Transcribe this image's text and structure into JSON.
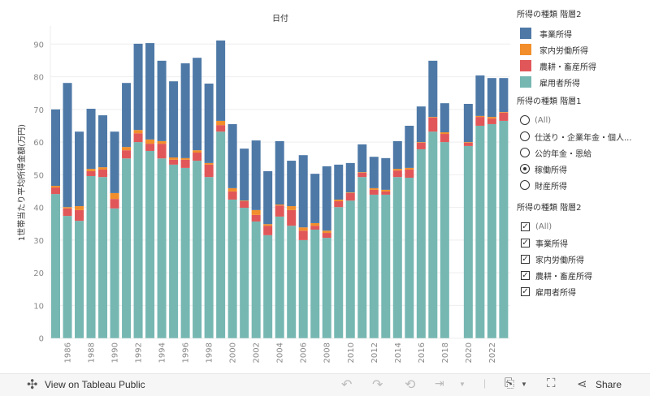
{
  "chart_data": {
    "type": "bar",
    "stacked": true,
    "title": "日付",
    "ylabel": "1世帯当たり平均所得金額(万円)",
    "xlabel": "",
    "ylim": [
      0,
      95
    ],
    "yticks": [
      0,
      10,
      20,
      30,
      40,
      50,
      60,
      70,
      80,
      90
    ],
    "grid": true,
    "categories": [
      1985,
      1986,
      1987,
      1988,
      1989,
      1990,
      1991,
      1992,
      1993,
      1994,
      1995,
      1996,
      1997,
      1998,
      1999,
      2000,
      2001,
      2002,
      2003,
      2004,
      2005,
      2006,
      2007,
      2008,
      2009,
      2010,
      2011,
      2012,
      2013,
      2014,
      2015,
      2016,
      2017,
      2018,
      2019,
      2020,
      2021,
      2022,
      2023
    ],
    "xtick_labels": [
      "1986",
      "1988",
      "1990",
      "1992",
      "1994",
      "1996",
      "1998",
      "2000",
      "2002",
      "2004",
      "2006",
      "2008",
      "2010",
      "2012",
      "2014",
      "2016",
      "2018",
      "2020",
      "2022"
    ],
    "series": [
      {
        "name": "雇用者所得",
        "color": "#76b7b2",
        "values": [
          44.1,
          37.4,
          35.9,
          49.6,
          49.3,
          39.7,
          55.0,
          60.0,
          57.3,
          55.0,
          53.1,
          52.1,
          54.3,
          49.3,
          63.2,
          42.4,
          39.9,
          35.7,
          31.5,
          37.2,
          34.4,
          30.0,
          33.2,
          30.7,
          40.1,
          42.1,
          49.3,
          43.9,
          43.9,
          49.3,
          49.1,
          57.8,
          63.2,
          60.0,
          null,
          58.8,
          65.0,
          65.5,
          66.5
        ]
      },
      {
        "name": "農耕・畜産所得",
        "color": "#e15759",
        "values": [
          2.0,
          2.3,
          3.3,
          1.5,
          2.3,
          2.9,
          2.5,
          2.7,
          2.2,
          4.5,
          1.5,
          2.5,
          2.5,
          3.8,
          2.0,
          2.5,
          2.0,
          2.0,
          2.9,
          3.4,
          4.8,
          2.9,
          1.2,
          1.5,
          1.8,
          2.3,
          1.3,
          1.5,
          1.0,
          2.0,
          2.5,
          2.0,
          4.3,
          2.5,
          null,
          1.0,
          2.7,
          1.7,
          2.5
        ]
      },
      {
        "name": "家内労働所得",
        "color": "#f28e2b",
        "values": [
          0.5,
          0.4,
          1.2,
          0.7,
          0.7,
          1.8,
          1.0,
          1.0,
          1.3,
          0.8,
          0.7,
          0.5,
          0.7,
          0.5,
          1.3,
          1.0,
          0.2,
          1.5,
          0.5,
          0.3,
          1.2,
          1.0,
          0.8,
          0.7,
          0.5,
          0.2,
          0.2,
          0.5,
          0.5,
          0.5,
          0.5,
          0.2,
          0.2,
          0.5,
          null,
          0.2,
          0.3,
          0.5,
          0.2
        ]
      },
      {
        "name": "事業所得",
        "color": "#4e79a7",
        "values": [
          23.4,
          38.0,
          22.8,
          18.4,
          15.9,
          18.8,
          19.6,
          26.4,
          29.5,
          24.6,
          23.3,
          29.0,
          28.3,
          24.3,
          24.6,
          19.6,
          15.9,
          21.3,
          16.2,
          19.4,
          13.9,
          22.1,
          15.1,
          19.7,
          10.7,
          9.0,
          8.5,
          9.6,
          9.7,
          8.5,
          12.9,
          10.9,
          17.2,
          8.9,
          null,
          11.7,
          12.4,
          11.9,
          10.4
        ]
      }
    ]
  },
  "legend": {
    "color_title": "所得の種類 階層2",
    "color_items": [
      {
        "label": "事業所得",
        "color": "#4e79a7"
      },
      {
        "label": "家内労働所得",
        "color": "#f28e2b"
      },
      {
        "label": "農耕・畜産所得",
        "color": "#e15759"
      },
      {
        "label": "雇用者所得",
        "color": "#76b7b2"
      }
    ],
    "radio_title": "所得の種類 階層1",
    "radio_items": [
      {
        "label": "(All)",
        "selected": false
      },
      {
        "label": "仕送り・企業年金・個人...",
        "selected": false
      },
      {
        "label": "公的年金・恩給",
        "selected": false
      },
      {
        "label": "稼働所得",
        "selected": true
      },
      {
        "label": "財産所得",
        "selected": false
      }
    ],
    "check_title": "所得の種類 階層2",
    "check_items": [
      {
        "label": "(All)",
        "checked": true
      },
      {
        "label": "事業所得",
        "checked": true
      },
      {
        "label": "家内労働所得",
        "checked": true
      },
      {
        "label": "農耕・畜産所得",
        "checked": true
      },
      {
        "label": "雇用者所得",
        "checked": true
      }
    ]
  },
  "footer": {
    "view_label": "View on Tableau Public",
    "share_label": "Share"
  }
}
